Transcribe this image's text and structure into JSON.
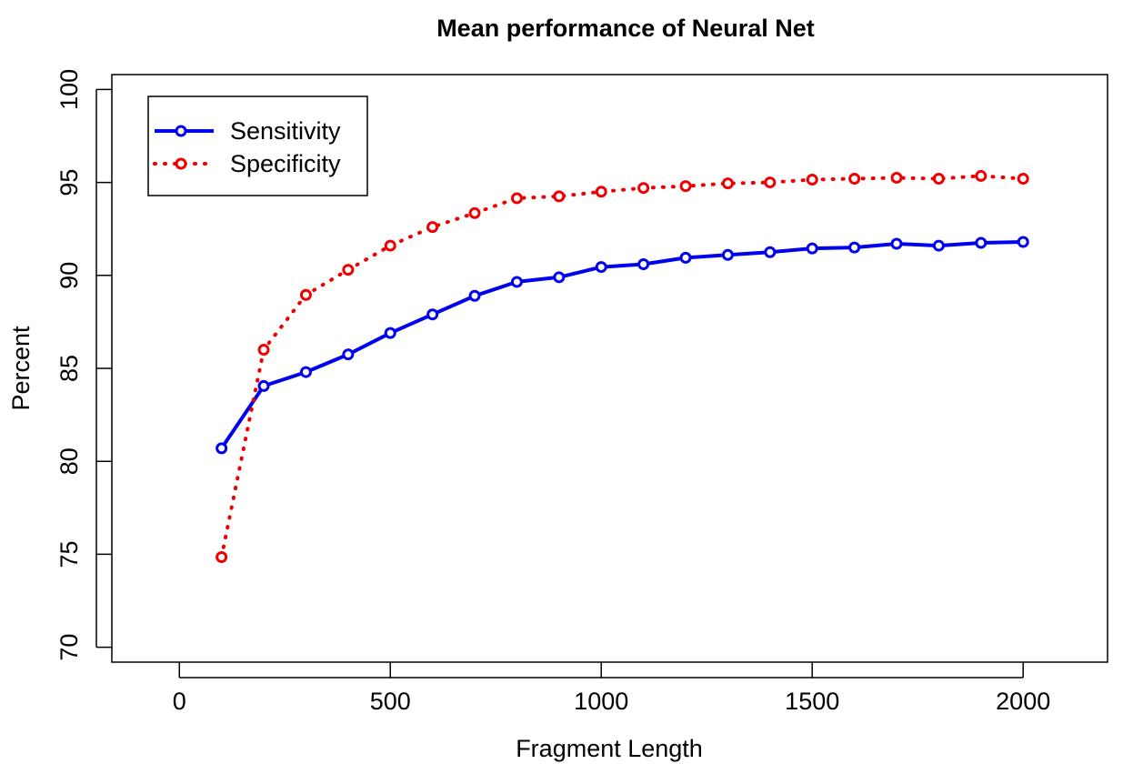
{
  "chart_data": {
    "type": "line",
    "title": "Mean performance of Neural Net",
    "xlabel": "Fragment Length",
    "ylabel": "Percent",
    "xlim": [
      -160,
      2200
    ],
    "ylim": [
      69.2,
      100.8
    ],
    "xticks": [
      0,
      500,
      1000,
      1500,
      2000
    ],
    "yticks": [
      70,
      75,
      80,
      85,
      90,
      95,
      100
    ],
    "grid": false,
    "legend_position": "top-left",
    "x": [
      100,
      200,
      300,
      400,
      500,
      600,
      700,
      800,
      900,
      1000,
      1100,
      1200,
      1300,
      1400,
      1500,
      1600,
      1700,
      1800,
      1900,
      2000
    ],
    "series": [
      {
        "name": "Sensitivity",
        "color": "#0000ee",
        "line_style": "solid",
        "marker": "open-circle",
        "values": [
          80.7,
          84.05,
          84.8,
          85.75,
          86.9,
          87.9,
          88.9,
          89.65,
          89.9,
          90.45,
          90.6,
          90.95,
          91.1,
          91.25,
          91.45,
          91.5,
          91.7,
          91.6,
          91.75,
          91.8
        ]
      },
      {
        "name": "Specificity",
        "color": "#ee0000",
        "line_style": "dotted",
        "marker": "open-circle",
        "values": [
          74.85,
          86.0,
          88.95,
          90.3,
          91.6,
          92.6,
          93.35,
          94.15,
          94.25,
          94.5,
          94.7,
          94.8,
          94.95,
          95.0,
          95.15,
          95.2,
          95.25,
          95.2,
          95.35,
          95.2
        ]
      }
    ]
  }
}
